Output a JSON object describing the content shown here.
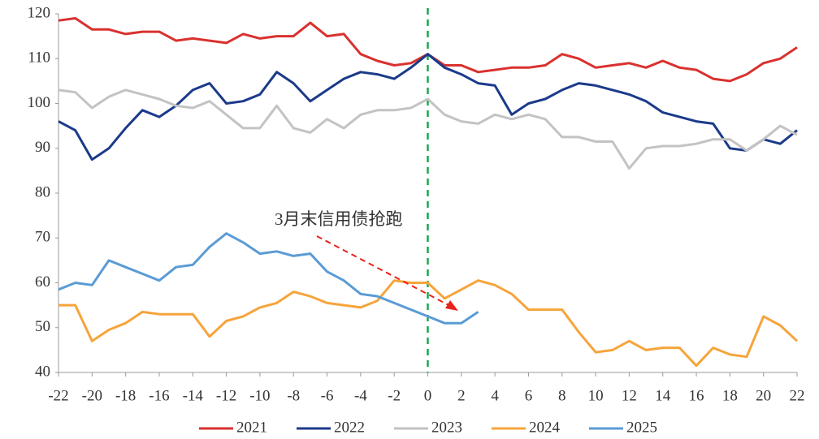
{
  "chart_data": {
    "type": "line",
    "x": [
      -22,
      -21,
      -20,
      -19,
      -18,
      -17,
      -16,
      -15,
      -14,
      -13,
      -12,
      -11,
      -10,
      -9,
      -8,
      -7,
      -6,
      -5,
      -4,
      -3,
      -2,
      -1,
      0,
      1,
      2,
      3,
      4,
      5,
      6,
      7,
      8,
      9,
      10,
      11,
      12,
      13,
      14,
      15,
      16,
      17,
      18,
      19,
      20,
      21,
      22
    ],
    "series": [
      {
        "name": "2021",
        "color": "#d9312f",
        "values": [
          118.5,
          119,
          116.5,
          116.5,
          115.5,
          116,
          116,
          114,
          114.5,
          114,
          113.5,
          115.5,
          114.5,
          115,
          115,
          118,
          115,
          115.5,
          111,
          109.5,
          108.5,
          109,
          111,
          108.5,
          108.5,
          107,
          107.5,
          108,
          108,
          108.5,
          111,
          110,
          108,
          108.5,
          109,
          108,
          109.5,
          108,
          107.5,
          105.5,
          105,
          106.5,
          109,
          110,
          112.5
        ]
      },
      {
        "name": "2022",
        "color": "#1b3a8a",
        "values": [
          96,
          94,
          87.5,
          90,
          94.5,
          98.5,
          97,
          99.5,
          103,
          104.5,
          100,
          100.5,
          102,
          107,
          104.5,
          100.5,
          103,
          105.5,
          107,
          106.5,
          105.5,
          108,
          111,
          108,
          106.5,
          104.5,
          104,
          97.5,
          100,
          101,
          103,
          104.5,
          104,
          103,
          102,
          100.5,
          98,
          97,
          96,
          95.5,
          90,
          89.5,
          92,
          91,
          94
        ]
      },
      {
        "name": "2023",
        "color": "#c3c3c3",
        "values": [
          103,
          102.5,
          99,
          101.5,
          103,
          102,
          101,
          99.5,
          99,
          100.5,
          97.5,
          94.5,
          94.5,
          99.5,
          94.5,
          93.5,
          96.5,
          94.5,
          97.5,
          98.5,
          98.5,
          99,
          101,
          97.5,
          96,
          95.5,
          97.5,
          96.5,
          97.5,
          96.5,
          92.5,
          92.5,
          91.5,
          91.5,
          85.5,
          90,
          90.5,
          90.5,
          91,
          92,
          92,
          89.5,
          92,
          95,
          93
        ]
      },
      {
        "name": "2024",
        "color": "#f6a43b",
        "values": [
          55,
          55,
          47,
          49.5,
          51,
          53.5,
          53,
          53,
          53,
          48,
          51.5,
          52.5,
          54.5,
          55.5,
          58,
          57,
          55.5,
          55,
          54.5,
          56,
          60.5,
          60,
          60,
          56.5,
          58.5,
          60.5,
          59.5,
          57.5,
          54,
          54,
          54,
          49,
          44.5,
          45,
          47,
          45,
          45.5,
          45.5,
          41.5,
          45.5,
          44,
          43.5,
          52.5,
          50.5,
          47
        ]
      },
      {
        "name": "2025",
        "color": "#5b9bd5",
        "values": [
          58.5,
          60,
          59.5,
          65,
          63.5,
          62,
          60.5,
          63.5,
          64,
          68,
          71,
          69,
          66.5,
          67,
          66,
          66.5,
          62.5,
          60.5,
          57.5,
          57,
          55.5,
          54,
          52.5,
          51,
          51,
          53.5,
          null,
          null,
          null,
          null,
          null,
          null,
          null,
          null,
          null,
          null,
          null,
          null,
          null,
          null,
          null,
          null,
          null,
          null,
          null
        ]
      }
    ],
    "xlim": [
      -22,
      22
    ],
    "xticks": [
      -22,
      -20,
      -18,
      -16,
      -14,
      -12,
      -10,
      -8,
      -6,
      -4,
      -2,
      0,
      2,
      4,
      6,
      8,
      10,
      12,
      14,
      16,
      18,
      20,
      22
    ],
    "ylim": [
      40,
      120
    ],
    "yticks": [
      40,
      50,
      60,
      70,
      80,
      90,
      100,
      110,
      120
    ],
    "vline_x": 0,
    "vline_color": "#1aa84b",
    "annotation": "3月末信用债抢跑",
    "legend": "bottom"
  }
}
